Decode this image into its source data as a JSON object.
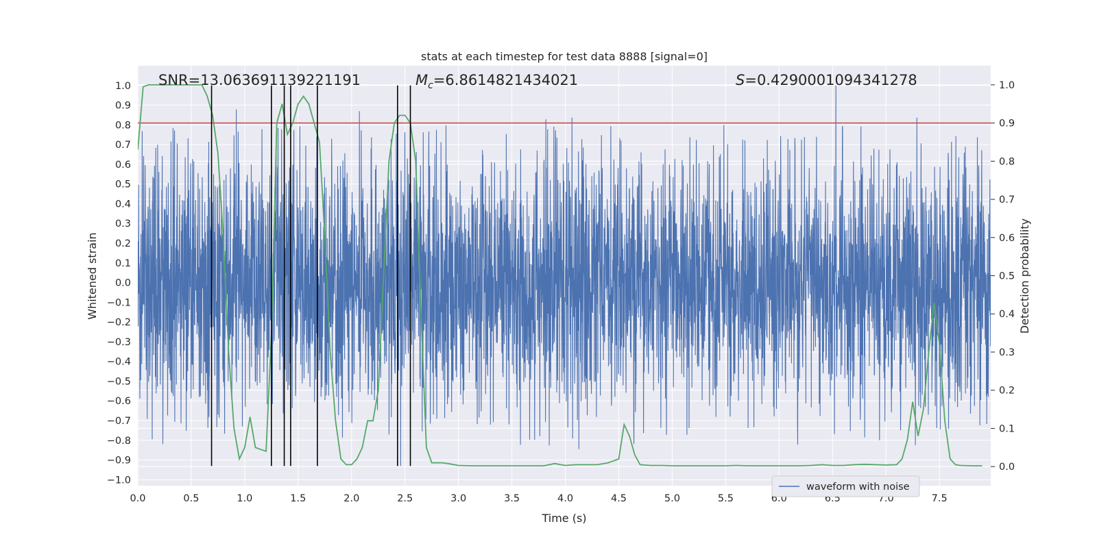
{
  "chart_data": {
    "type": "line",
    "title": "stats at each timestep for test data 8888 [signal=0]",
    "xlabel": "Time (s)",
    "ylabel": "Whitened strain",
    "ylabel_right": "Detection probability",
    "xlim": [
      0.0,
      7.98
    ],
    "ylim": [
      -1.03,
      1.1
    ],
    "ylim_right": [
      -0.05,
      1.05
    ],
    "x_ticks": [
      0.0,
      0.5,
      1.0,
      1.5,
      2.0,
      2.5,
      3.0,
      3.5,
      4.0,
      4.5,
      5.0,
      5.5,
      6.0,
      6.5,
      7.0,
      7.5
    ],
    "x_tick_labels": [
      "0.0",
      "0.5",
      "1.0",
      "1.5",
      "2.0",
      "2.5",
      "3.0",
      "3.5",
      "4.0",
      "4.5",
      "5.0",
      "5.5",
      "6.0",
      "6.5",
      "7.0",
      "7.5"
    ],
    "y_ticks": [
      -1.0,
      -0.9,
      -0.8,
      -0.7,
      -0.6,
      -0.5,
      -0.4,
      -0.3,
      -0.2,
      -0.1,
      0.0,
      0.1,
      0.2,
      0.3,
      0.4,
      0.5,
      0.6,
      0.7,
      0.8,
      0.9,
      1.0
    ],
    "y_tick_labels": [
      "−1.0",
      "−0.9",
      "−0.8",
      "−0.7",
      "−0.6",
      "−0.5",
      "−0.4",
      "−0.3",
      "−0.2",
      "−0.1",
      "0.0",
      "0.1",
      "0.2",
      "0.3",
      "0.4",
      "0.5",
      "0.6",
      "0.7",
      "0.8",
      "0.9",
      "1.0"
    ],
    "y_right_ticks": [
      0.0,
      0.1,
      0.2,
      0.3,
      0.4,
      0.5,
      0.6,
      0.7,
      0.8,
      0.9,
      1.0
    ],
    "y_right_tick_labels": [
      "0.0",
      "0.1",
      "0.2",
      "0.3",
      "0.4",
      "0.5",
      "0.6",
      "0.7",
      "0.8",
      "0.9",
      "1.0"
    ],
    "grid": true,
    "legend_position": "lower-right",
    "annotations": {
      "snr": "SNR=13.063691139221191",
      "mc_symbol": "M",
      "mc_sub": "c",
      "mc_value": "=6.8614821434021",
      "s_symbol": "S",
      "s_value": "=0.4290001094341278"
    },
    "series": [
      {
        "name": "waveform with noise",
        "axis": "left",
        "color": "#4c72b0",
        "kind": "noise",
        "n_samples": 4088,
        "core_amplitude": 0.3,
        "peak_range": [
          -0.93,
          1.0
        ],
        "duration": 7.98
      },
      {
        "name": "detection probability",
        "axis": "right",
        "color": "#55a868",
        "x": [
          0.0,
          0.05,
          0.1,
          0.2,
          0.3,
          0.4,
          0.5,
          0.6,
          0.65,
          0.7,
          0.75,
          0.8,
          0.85,
          0.9,
          0.95,
          1.0,
          1.05,
          1.1,
          1.2,
          1.25,
          1.3,
          1.35,
          1.4,
          1.45,
          1.5,
          1.55,
          1.6,
          1.65,
          1.7,
          1.75,
          1.8,
          1.85,
          1.9,
          1.95,
          2.0,
          2.05,
          2.1,
          2.15,
          2.2,
          2.25,
          2.3,
          2.35,
          2.4,
          2.45,
          2.5,
          2.55,
          2.6,
          2.65,
          2.7,
          2.75,
          2.8,
          2.85,
          2.9,
          3.0,
          3.1,
          3.2,
          3.3,
          3.4,
          3.5,
          3.6,
          3.7,
          3.8,
          3.9,
          4.0,
          4.1,
          4.2,
          4.3,
          4.4,
          4.5,
          4.55,
          4.6,
          4.65,
          4.7,
          4.8,
          4.9,
          5.0,
          5.1,
          5.2,
          5.3,
          5.4,
          5.5,
          5.6,
          5.7,
          5.8,
          5.9,
          6.0,
          6.1,
          6.2,
          6.3,
          6.4,
          6.5,
          6.6,
          6.7,
          6.8,
          6.9,
          7.0,
          7.1,
          7.15,
          7.2,
          7.25,
          7.3,
          7.35,
          7.4,
          7.45,
          7.5,
          7.55,
          7.6,
          7.65,
          7.7,
          7.8,
          7.9
        ],
        "y": [
          0.83,
          0.995,
          1.0,
          1.0,
          1.0,
          1.0,
          1.0,
          1.0,
          0.97,
          0.92,
          0.82,
          0.6,
          0.3,
          0.1,
          0.02,
          0.05,
          0.13,
          0.05,
          0.04,
          0.35,
          0.9,
          0.95,
          0.87,
          0.9,
          0.95,
          0.97,
          0.95,
          0.9,
          0.85,
          0.6,
          0.3,
          0.12,
          0.02,
          0.005,
          0.005,
          0.02,
          0.05,
          0.12,
          0.12,
          0.2,
          0.5,
          0.8,
          0.9,
          0.92,
          0.92,
          0.9,
          0.8,
          0.4,
          0.05,
          0.01,
          0.01,
          0.01,
          0.008,
          0.003,
          0.002,
          0.002,
          0.002,
          0.002,
          0.002,
          0.002,
          0.002,
          0.002,
          0.008,
          0.003,
          0.005,
          0.005,
          0.005,
          0.01,
          0.02,
          0.11,
          0.08,
          0.03,
          0.005,
          0.003,
          0.003,
          0.002,
          0.002,
          0.002,
          0.002,
          0.002,
          0.002,
          0.003,
          0.002,
          0.002,
          0.002,
          0.002,
          0.002,
          0.002,
          0.003,
          0.005,
          0.003,
          0.003,
          0.005,
          0.006,
          0.005,
          0.004,
          0.005,
          0.02,
          0.07,
          0.17,
          0.08,
          0.15,
          0.3,
          0.43,
          0.32,
          0.12,
          0.02,
          0.005,
          0.003,
          0.002,
          0.002
        ]
      }
    ],
    "threshold": {
      "axis": "right",
      "value": 0.9,
      "color": "#c44e52"
    },
    "vertical_lines": {
      "x": [
        0.69,
        1.25,
        1.37,
        1.43,
        1.68,
        2.43,
        2.55
      ],
      "ymin": -0.93,
      "ymax": 1.0,
      "color": "#000000"
    }
  }
}
